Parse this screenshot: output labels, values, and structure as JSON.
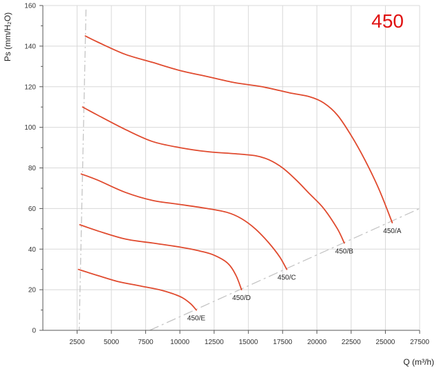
{
  "chart_data": {
    "type": "line",
    "title": "450",
    "xlabel": "Q (m³/h)",
    "ylabel": "Ps (mm/H₂O)",
    "xlim": [
      0,
      27500
    ],
    "ylim": [
      0,
      160
    ],
    "x_ticks": [
      2500,
      5000,
      7500,
      10000,
      12500,
      15000,
      17500,
      20000,
      22500,
      25000,
      27500
    ],
    "y_ticks": [
      0,
      20,
      40,
      60,
      80,
      100,
      120,
      140,
      160
    ],
    "x_tick_labels": [
      "2500",
      "5000",
      "7500",
      "10000",
      "12500",
      "15000",
      "17500",
      "20000",
      "22500",
      "25000",
      "27500"
    ],
    "y_tick_labels": [
      "0",
      "20",
      "40",
      "60",
      "80",
      "100",
      "120",
      "140",
      "160"
    ],
    "grid": true,
    "series": [
      {
        "name": "450/A",
        "x": [
          3100,
          4000,
          6000,
          8000,
          10000,
          12000,
          14000,
          16000,
          18000,
          19500,
          20500,
          21500,
          22500,
          23500,
          24500,
          25500
        ],
        "y": [
          145,
          142,
          136,
          132,
          128,
          125,
          122,
          120,
          117,
          115,
          112,
          106,
          96,
          84,
          70,
          53
        ]
      },
      {
        "name": "450/B",
        "x": [
          2900,
          4000,
          6000,
          8000,
          10000,
          12000,
          14000,
          15500,
          16500,
          17500,
          18500,
          19500,
          20500,
          21500,
          22000
        ],
        "y": [
          110,
          106,
          99,
          93,
          90,
          88,
          87,
          86,
          84,
          80,
          74,
          67,
          60,
          50,
          43
        ]
      },
      {
        "name": "450/C",
        "x": [
          2800,
          4000,
          6000,
          8000,
          10000,
          12000,
          13500,
          14500,
          15500,
          16500,
          17300,
          17800
        ],
        "y": [
          77,
          74,
          68,
          64,
          62,
          60,
          58,
          55,
          50,
          43,
          36,
          30
        ]
      },
      {
        "name": "450/D",
        "x": [
          2700,
          4000,
          6000,
          8000,
          10000,
          11500,
          12500,
          13500,
          14100,
          14500
        ],
        "y": [
          52,
          49,
          45,
          43,
          41,
          39,
          37,
          33,
          27,
          20
        ]
      },
      {
        "name": "450/E",
        "x": [
          2600,
          4000,
          5500,
          7000,
          8500,
          9500,
          10200,
          10800,
          11200
        ],
        "y": [
          30,
          27,
          24,
          22,
          20,
          18,
          16,
          13,
          10
        ]
      }
    ],
    "boundary_lines": [
      {
        "x": [
          3150,
          2650
        ],
        "y": [
          158,
          0
        ]
      },
      {
        "x": [
          7800,
          27500
        ],
        "y": [
          0,
          60
        ]
      }
    ],
    "colors": {
      "series": "#e04a2e",
      "title": "#e01010",
      "grid": "#d8d8d8",
      "axis": "#555555",
      "boundary": "#c4c4c4"
    }
  }
}
